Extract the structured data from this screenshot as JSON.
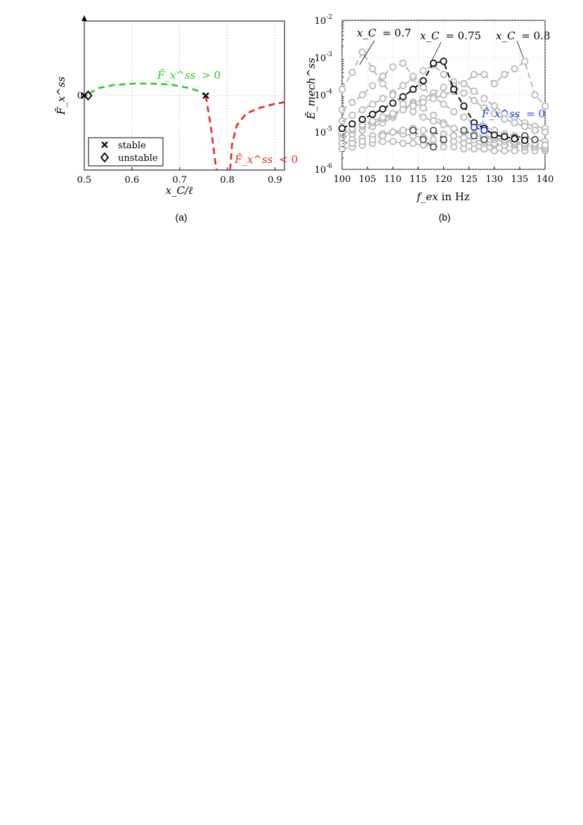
{
  "chart_data": [
    {
      "type": "line",
      "caption": "(a)",
      "xlabel": "x_C/ℓ",
      "ylabel": "F̄_x^ss",
      "xlim": [
        0.5,
        0.92
      ],
      "xticks": [
        "0.5",
        "0.6",
        "0.7",
        "0.8",
        "0.9"
      ],
      "yticks": [
        "0"
      ],
      "ylim": [
        -1.0,
        1.0
      ],
      "grid": true,
      "legend": {
        "placement": "bottom-left",
        "entries": [
          "stable",
          "unstable"
        ]
      },
      "series": [
        {
          "color": "#22cc22",
          "style": "dashed",
          "x": [
            0.51,
            0.53,
            0.56,
            0.6,
            0.64,
            0.68,
            0.72,
            0.74,
            0.755
          ],
          "y": [
            0.03,
            0.1,
            0.14,
            0.16,
            0.16,
            0.15,
            0.1,
            0.06,
            0.0
          ]
        },
        {
          "color": "#ee2222",
          "style": "dashed",
          "x": [
            0.755,
            0.765,
            0.772,
            0.775,
            0.778
          ],
          "y": [
            0.0,
            -0.4,
            -0.75,
            -0.9,
            -1.0
          ]
        },
        {
          "color": "#ee2222",
          "style": "dashed",
          "x": [
            0.806,
            0.81,
            0.82,
            0.84,
            0.87,
            0.9,
            0.92
          ],
          "y": [
            -1.0,
            -0.65,
            -0.4,
            -0.24,
            -0.16,
            -0.11,
            -0.09
          ]
        }
      ],
      "points": [
        {
          "marker": "x",
          "legend": "stable",
          "x": 0.5,
          "y": 0
        },
        {
          "marker": "x",
          "legend": "stable",
          "x": 0.755,
          "y": 0
        },
        {
          "marker": "diamond",
          "legend": "unstable",
          "x": 0.508,
          "y": 0
        }
      ],
      "annotations": [
        {
          "text_var": "F̄_x^ss",
          "text_rel": "> 0",
          "color": "#22cc22"
        },
        {
          "text_var": "F̄_x^ss",
          "text_rel": "< 0",
          "color": "#ee2222"
        }
      ]
    },
    {
      "type": "line",
      "caption": "(b)",
      "xlabel_var": "f_ex",
      "xlabel_unit": " in Hz",
      "ylabel": "Ē_mech^ss",
      "xlim": [
        100,
        140
      ],
      "xticks": [
        "100",
        "105",
        "110",
        "115",
        "120",
        "125",
        "130",
        "135",
        "140"
      ],
      "ylim_log10": [
        -6,
        -2
      ],
      "yticks": [
        {
          "base": "10",
          "exp": "-2",
          "v": -2
        },
        {
          "base": "10",
          "exp": "-3",
          "v": -3
        },
        {
          "base": "10",
          "exp": "-4",
          "v": -4
        },
        {
          "base": "10",
          "exp": "-5",
          "v": -5
        },
        {
          "base": "10",
          "exp": "-6",
          "v": -6
        }
      ],
      "yscale": "log",
      "grid": true,
      "series": [
        {
          "color": "#b8b8b8",
          "x": [
            100,
            102,
            104,
            106,
            108,
            110,
            112,
            114,
            116,
            118,
            120,
            122,
            124,
            126,
            128,
            130,
            132,
            134,
            136,
            138,
            140
          ],
          "log_y": [
            -5.3,
            -5.2,
            -5.15,
            -5.1,
            -5.05,
            -5.0,
            -5.05,
            -5.1,
            -5.15,
            -5.2,
            -5.25,
            -5.25,
            -5.3,
            -5.3,
            -5.35,
            -5.35,
            -5.35,
            -5.4,
            -5.4,
            -5.45,
            -5.45
          ]
        },
        {
          "color": "#b8b8b8",
          "x": [
            100,
            102,
            104,
            106,
            108,
            110,
            112,
            114,
            116,
            118,
            120,
            122,
            124,
            126,
            128,
            130,
            132,
            134,
            136,
            138,
            140
          ],
          "log_y": [
            -5.45,
            -5.4,
            -5.35,
            -5.3,
            -5.25,
            -5.25,
            -5.3,
            -5.3,
            -5.35,
            -5.35,
            -5.4,
            -5.4,
            -5.45,
            -5.45,
            -5.45,
            -5.5,
            -5.5,
            -5.5,
            -5.5,
            -5.5,
            -5.5
          ]
        },
        {
          "color": "#b8b8b8",
          "x": [
            100,
            102,
            104,
            106,
            108,
            110,
            112,
            114,
            116,
            118,
            120,
            122,
            124,
            126,
            128,
            130,
            132,
            134,
            136,
            138,
            140
          ],
          "log_y": [
            -5.3,
            -5.3,
            -5.25,
            -5.2,
            -5.1,
            -5.0,
            -4.95,
            -4.9,
            -4.95,
            -5.0,
            -5.05,
            -5.1,
            -5.15,
            -5.2,
            -5.25,
            -5.3,
            -5.35,
            -5.35,
            -5.4,
            -5.4,
            -5.45
          ]
        },
        {
          "color": "#b8b8b8",
          "x": [
            100,
            102,
            104,
            106,
            108,
            110,
            112,
            114,
            116,
            118,
            120,
            122,
            124,
            126,
            128,
            130,
            132,
            134,
            136,
            138,
            140
          ],
          "log_y": [
            -5.15,
            -5.05,
            -4.95,
            -4.85,
            -4.75,
            -4.6,
            -4.4,
            -4.2,
            -4.35,
            -4.55,
            -4.75,
            -4.9,
            -5.0,
            -5.1,
            -5.15,
            -5.2,
            -5.25,
            -5.3,
            -5.35,
            -5.35,
            -5.4
          ]
        },
        {
          "color": "#b8b8b8",
          "x": [
            100,
            102,
            104,
            106,
            108,
            110,
            112,
            114,
            116,
            118,
            120,
            122,
            124,
            126,
            128,
            130,
            132,
            134,
            136,
            138,
            140
          ],
          "log_y": [
            -5.05,
            -4.95,
            -4.85,
            -4.75,
            -4.65,
            -4.55,
            -4.4,
            -4.25,
            -4.1,
            -3.95,
            -3.8,
            -3.65,
            -3.7,
            -3.9,
            -4.1,
            -4.3,
            -4.5,
            -4.6,
            -4.75,
            -4.85,
            -4.9
          ]
        },
        {
          "color": "#b8b8b8",
          "x": [
            100,
            102,
            104,
            106,
            108,
            110,
            112,
            114,
            116,
            118,
            120,
            122,
            124,
            126,
            128,
            130,
            132,
            134,
            136,
            138,
            140
          ],
          "log_y": [
            -4.7,
            -4.55,
            -4.4,
            -4.25,
            -4.1,
            -3.95,
            -3.75,
            -3.55,
            -3.35,
            -3.2,
            -3.45,
            -3.75,
            -3.95,
            -4.15,
            -4.35,
            -4.5,
            -4.65,
            -4.75,
            -4.85,
            -4.95,
            -5.0
          ]
        },
        {
          "color": "#b8b8b8",
          "x": [
            100,
            102,
            104,
            106,
            108,
            110,
            112,
            114,
            116,
            118,
            120,
            122,
            124,
            126,
            128,
            130,
            132,
            134,
            136,
            138,
            140
          ],
          "log_y": [
            -4.4,
            -4.2,
            -4.0,
            -3.75,
            -3.5,
            -3.25,
            -3.15,
            -3.5,
            -3.8,
            -4.05,
            -4.25,
            -4.45,
            -4.6,
            -4.75,
            -4.85,
            -4.95,
            -5.05,
            -5.1,
            -5.15,
            -5.2,
            -5.25
          ]
        },
        {
          "color": "#b8b8b8",
          "x": [
            100,
            102,
            104,
            106,
            108,
            110,
            112,
            114,
            116,
            118,
            120,
            122,
            124,
            126,
            128,
            130,
            132,
            134,
            136,
            138,
            140
          ],
          "log_y": [
            -3.85,
            -3.4,
            -2.85,
            -3.3,
            -3.7,
            -4.0,
            -4.25,
            -4.45,
            -4.6,
            -4.7,
            -4.8,
            -4.9,
            -5.0,
            -5.05,
            -5.1,
            -5.15,
            -5.2,
            -5.25,
            -5.3,
            -5.3,
            -5.35
          ]
        },
        {
          "color": "#b8b8b8",
          "x": [
            100,
            102,
            104,
            106,
            108,
            110,
            112,
            114,
            116,
            118,
            120,
            122,
            124,
            126,
            128,
            130,
            132,
            134,
            136,
            138,
            140
          ],
          "log_y": [
            -5.0,
            -4.9,
            -4.8,
            -4.7,
            -4.6,
            -4.5,
            -4.4,
            -4.3,
            -4.2,
            -4.1,
            -4.0,
            -3.9,
            -3.7,
            -3.45,
            -3.45,
            -3.7,
            -3.45,
            -3.3,
            -3.1,
            -4.0,
            -4.3
          ]
        },
        {
          "color": "#555555",
          "x": [
            114,
            116,
            118
          ],
          "log_y": [
            -4.95,
            -5.2,
            -5.4
          ]
        },
        {
          "color": "#555555",
          "x": [
            118,
            120
          ],
          "log_y": [
            -4.95,
            -5.2
          ]
        },
        {
          "color": "#555555",
          "x": [
            124,
            126,
            128
          ],
          "log_y": [
            -4.95,
            -5.1,
            -5.2
          ]
        },
        {
          "color": "#555555",
          "x": [
            134,
            136,
            138
          ],
          "log_y": [
            -5.15,
            -5.1,
            -5.2
          ]
        },
        {
          "color": "#111111",
          "x": [
            100,
            102,
            104,
            106,
            108,
            110,
            112,
            114,
            116,
            118,
            120,
            122,
            124,
            126,
            128,
            130,
            132,
            134,
            136
          ],
          "log_y": [
            -4.9,
            -4.78,
            -4.66,
            -4.52,
            -4.38,
            -4.22,
            -4.05,
            -3.85,
            -3.62,
            -3.15,
            -3.1,
            -3.85,
            -4.3,
            -4.75,
            -4.9,
            -5.08,
            -5.12,
            -5.18,
            -5.22
          ]
        },
        {
          "color": "#2244dd",
          "x": [
            126,
            128
          ],
          "log_y": [
            -4.87,
            -4.95
          ]
        }
      ],
      "annotations": [
        {
          "text_var": "x_C",
          "text_rel": "= 0.7"
        },
        {
          "text_var": "x_C",
          "text_rel": "= 0.75"
        },
        {
          "text_var": "x_C",
          "text_rel": "= 0.8"
        },
        {
          "text_var": "F̄_x^ss",
          "text_rel": "= 0",
          "color": "#2244dd"
        }
      ]
    }
  ]
}
